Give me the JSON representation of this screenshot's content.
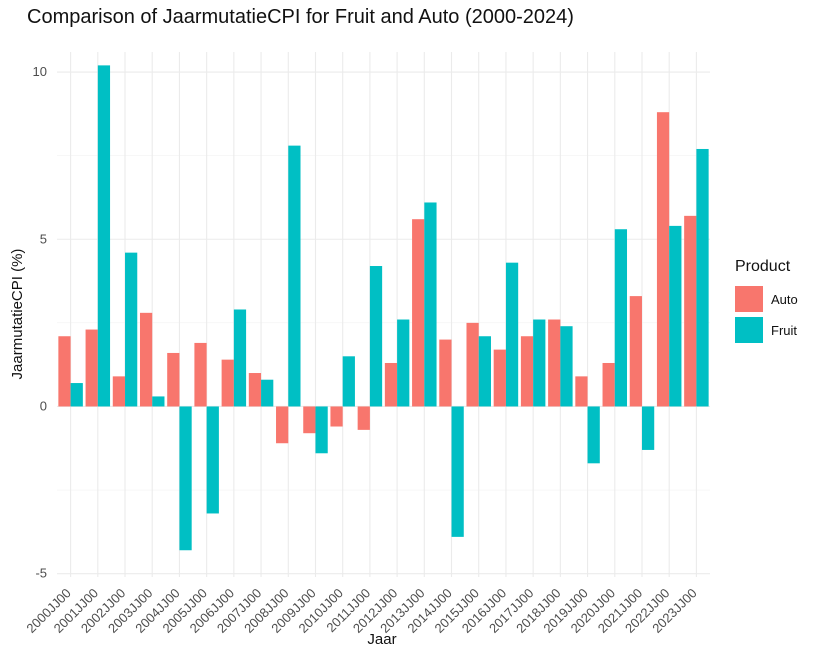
{
  "chart_data": {
    "type": "bar",
    "title": "Comparison of JaarmutatieCPI for Fruit and Auto (2000-2024)",
    "xlabel": "Jaar",
    "ylabel": "JaarmutatieCPI (%)",
    "ylim": [
      -5.1,
      10.6
    ],
    "yticks": [
      -5,
      0,
      5,
      10
    ],
    "grid": true,
    "legend_position": "right",
    "legend_title": "Product",
    "categories": [
      "2000JJ00",
      "2001JJ00",
      "2002JJ00",
      "2003JJ00",
      "2004JJ00",
      "2005JJ00",
      "2006JJ00",
      "2007JJ00",
      "2008JJ00",
      "2009JJ00",
      "2010JJ00",
      "2011JJ00",
      "2012JJ00",
      "2013JJ00",
      "2014JJ00",
      "2015JJ00",
      "2016JJ00",
      "2017JJ00",
      "2018JJ00",
      "2019JJ00",
      "2020JJ00",
      "2021JJ00",
      "2022JJ00",
      "2023JJ00"
    ],
    "series": [
      {
        "name": "Auto",
        "color": "#F8766D",
        "values": [
          2.1,
          2.3,
          0.9,
          2.8,
          1.6,
          1.9,
          1.4,
          1.0,
          -1.1,
          -0.8,
          -0.6,
          -0.7,
          1.3,
          5.6,
          2.0,
          2.5,
          1.7,
          2.1,
          2.6,
          0.9,
          1.3,
          3.3,
          8.8,
          5.7
        ]
      },
      {
        "name": "Fruit",
        "color": "#00BFC4",
        "values": [
          0.7,
          10.2,
          4.6,
          0.3,
          -4.3,
          -3.2,
          2.9,
          0.8,
          7.8,
          -1.4,
          1.5,
          4.2,
          2.6,
          6.1,
          -3.9,
          2.1,
          4.3,
          2.6,
          2.4,
          -1.7,
          5.3,
          -1.3,
          5.4,
          7.7
        ]
      }
    ]
  }
}
